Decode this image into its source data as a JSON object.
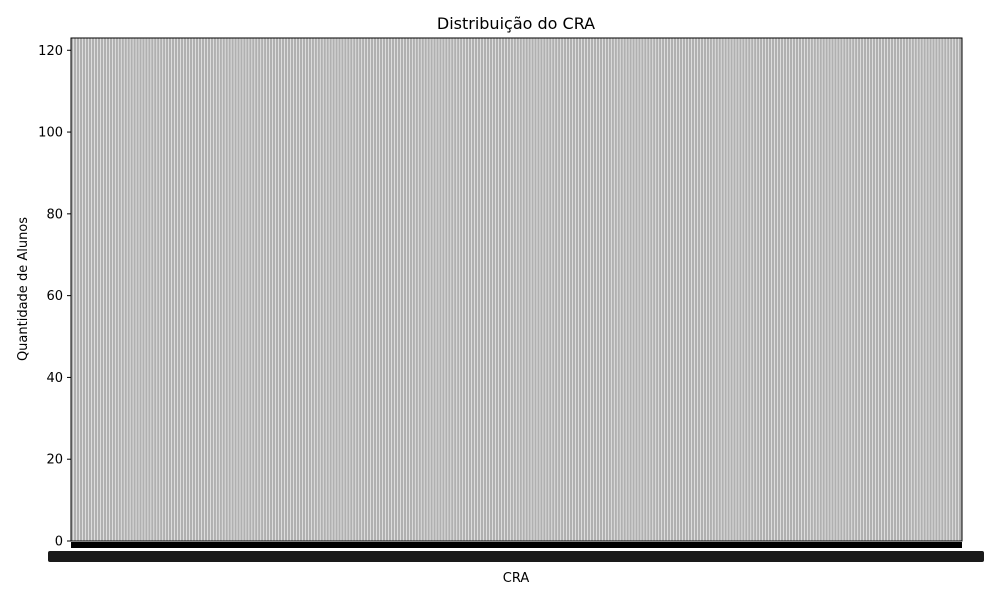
{
  "chart_data": {
    "type": "bar",
    "title": "Distribuição do CRA",
    "xlabel": "CRA",
    "ylabel": "Quantidade de Alunos",
    "ylim": [
      0,
      123
    ],
    "yticks": [
      0,
      20,
      40,
      60,
      80,
      100,
      120
    ],
    "grid": false,
    "legend": "none",
    "bar_color": "#b0b0b0",
    "edge_color": "#000000",
    "category_count": 300,
    "category_labels_legible": false,
    "values_note": "300 overlapping bars fill the whole plot area up to ~123; individual category labels are an illegible overlapping mass",
    "max_value": 123
  }
}
